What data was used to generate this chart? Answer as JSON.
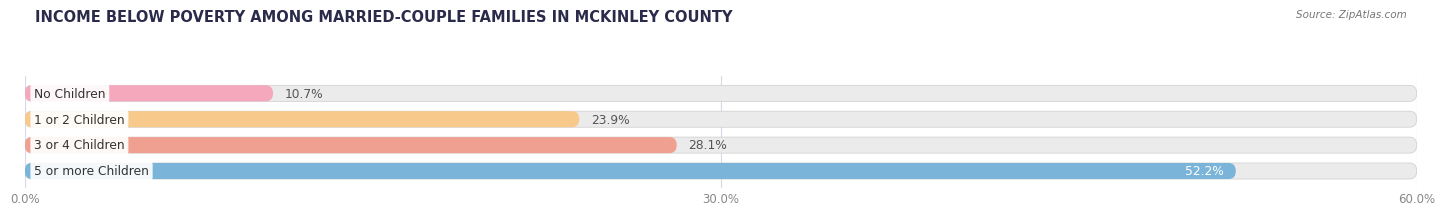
{
  "title": "INCOME BELOW POVERTY AMONG MARRIED-COUPLE FAMILIES IN MCKINLEY COUNTY",
  "source": "Source: ZipAtlas.com",
  "categories": [
    "No Children",
    "1 or 2 Children",
    "3 or 4 Children",
    "5 or more Children"
  ],
  "values": [
    10.7,
    23.9,
    28.1,
    52.2
  ],
  "bar_colors": [
    "#f5a8bb",
    "#f7c98a",
    "#f0a090",
    "#7ab4d8"
  ],
  "label_colors": [
    "#555555",
    "#555555",
    "#555555",
    "#ffffff"
  ],
  "xlim": [
    0,
    60
  ],
  "xticks": [
    0.0,
    30.0,
    60.0
  ],
  "xtick_labels": [
    "0.0%",
    "30.0%",
    "60.0%"
  ],
  "title_fontsize": 10.5,
  "bar_height": 0.62,
  "background_color": "#ffffff",
  "bar_background_color": "#ebebeb",
  "grid_color": "#d8d8e8",
  "value_label_dark": "#555555",
  "value_label_light": "#ffffff"
}
